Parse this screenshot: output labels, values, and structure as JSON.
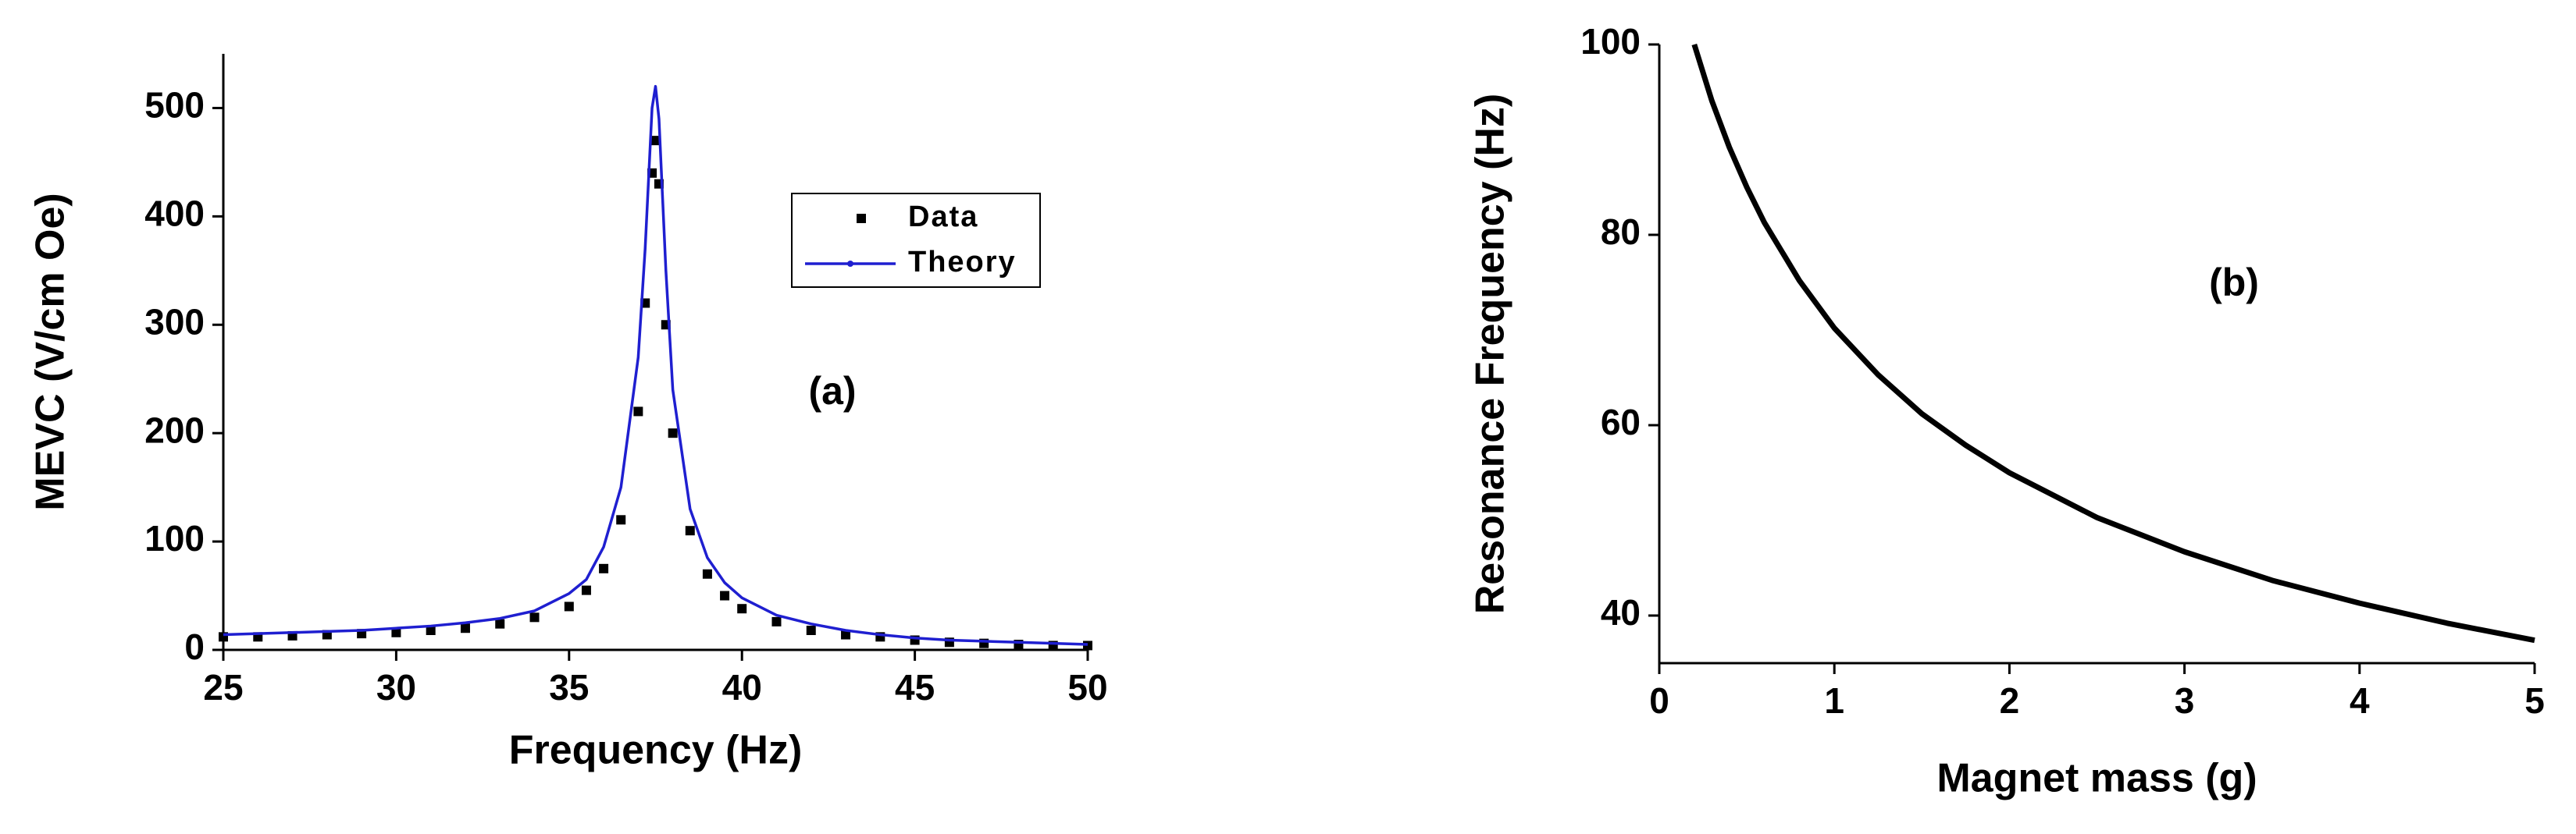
{
  "chart_data": [
    {
      "type": "line",
      "xlabel": "Frequency (Hz)",
      "ylabel": "MEVC (V/cm Oe)",
      "annotation": "(a)",
      "xlim": [
        25,
        50
      ],
      "xticks": [
        25,
        30,
        35,
        40,
        45,
        50
      ],
      "ylim": [
        0,
        550
      ],
      "yticks": [
        0,
        100,
        200,
        300,
        400,
        500
      ],
      "legend": "top-right",
      "series": [
        {
          "name": "Data",
          "color": "#000000",
          "style": "markers",
          "x": [
            25,
            26,
            27,
            28,
            29,
            30,
            31,
            32,
            33,
            34,
            35,
            35.5,
            36,
            36.5,
            37,
            37.2,
            37.4,
            37.5,
            37.6,
            37.8,
            38,
            38.5,
            39,
            39.5,
            40,
            41,
            42,
            43,
            44,
            45,
            46,
            47,
            48,
            49,
            50
          ],
          "values": [
            12,
            12,
            13,
            14,
            15,
            16,
            18,
            20,
            24,
            30,
            40,
            55,
            75,
            120,
            220,
            320,
            440,
            470,
            430,
            300,
            200,
            110,
            70,
            50,
            38,
            26,
            18,
            14,
            12,
            9,
            7,
            6,
            5,
            4,
            4
          ]
        },
        {
          "name": "Theory",
          "color": "#1f1fd0",
          "style": "line",
          "x": [
            25,
            26,
            27,
            28,
            29,
            30,
            31,
            32,
            33,
            34,
            35,
            35.5,
            36,
            36.5,
            37,
            37.2,
            37.4,
            37.5,
            37.6,
            37.8,
            38,
            38.5,
            39,
            39.5,
            40,
            41,
            42,
            43,
            44,
            45,
            46,
            47,
            48,
            49,
            50
          ],
          "values": [
            14,
            15,
            16,
            17,
            18,
            20,
            22,
            25,
            29,
            36,
            52,
            65,
            95,
            150,
            270,
            370,
            500,
            520,
            490,
            350,
            240,
            130,
            85,
            62,
            48,
            32,
            24,
            18,
            14,
            11,
            9,
            8,
            7,
            6,
            5
          ]
        }
      ]
    },
    {
      "type": "line",
      "xlabel": "Magnet mass (g)",
      "ylabel": "Resonance Frequency (Hz)",
      "annotation": "(b)",
      "xlim": [
        0,
        5
      ],
      "xticks": [
        0,
        1,
        2,
        3,
        4,
        5
      ],
      "ylim": [
        35,
        100
      ],
      "yticks": [
        40,
        60,
        80,
        100
      ],
      "series": [
        {
          "color": "#000000",
          "style": "line",
          "x": [
            0.2,
            0.3,
            0.4,
            0.5,
            0.6,
            0.8,
            1,
            1.25,
            1.5,
            1.75,
            2,
            2.5,
            3,
            3.5,
            4,
            4.5,
            5
          ],
          "values": [
            100,
            94.1,
            89.2,
            85.0,
            81.3,
            75.2,
            70.2,
            65.3,
            61.2,
            57.9,
            55.0,
            50.3,
            46.7,
            43.7,
            41.3,
            39.2,
            37.4
          ]
        }
      ]
    }
  ]
}
